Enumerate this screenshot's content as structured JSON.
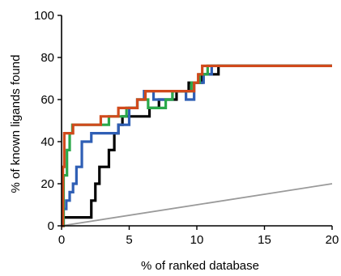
{
  "chart_data": {
    "type": "line",
    "title": "",
    "xlabel": "% of ranked database",
    "ylabel": "% of known ligands found",
    "xlim": [
      0,
      20
    ],
    "ylim": [
      0,
      100
    ],
    "xticks": [
      0,
      5,
      10,
      15,
      20
    ],
    "yticks": [
      0,
      20,
      40,
      60,
      80,
      100
    ],
    "grid": false,
    "legend": "none",
    "series": [
      {
        "color": "#9a9a9a",
        "x": [
          0,
          20
        ],
        "y": [
          0,
          20
        ]
      },
      {
        "color": "#000000",
        "x": [
          0,
          0.1,
          0.15,
          0.15,
          2.2,
          2.2,
          2.5,
          2.5,
          2.8,
          2.8,
          3.5,
          3.5,
          3.9,
          3.9,
          4.2,
          4.2,
          4.5,
          4.5,
          6.5,
          6.5,
          7.2,
          7.2,
          8.5,
          8.5,
          9.4,
          9.4,
          10.4,
          10.4,
          11.0,
          11.0,
          11.6,
          11.6,
          20
        ],
        "y": [
          0,
          0,
          4,
          4,
          4,
          12,
          12,
          20,
          20,
          28,
          28,
          36,
          36,
          44,
          44,
          48,
          48,
          52,
          52,
          56,
          56,
          60,
          60,
          64,
          64,
          68,
          68,
          72,
          72,
          72,
          72,
          76,
          76
        ]
      },
      {
        "color": "#2f5fb5",
        "x": [
          0,
          0.15,
          0.15,
          0.35,
          0.35,
          0.6,
          0.6,
          0.85,
          0.85,
          1.1,
          1.1,
          1.5,
          1.5,
          2.2,
          2.2,
          4.2,
          4.2,
          5.0,
          5.0,
          5.6,
          5.6,
          6.1,
          6.1,
          6.8,
          6.8,
          8.2,
          8.2,
          9.2,
          9.2,
          9.8,
          9.8,
          10.5,
          10.5,
          11.1,
          11.1,
          20
        ],
        "y": [
          0,
          0,
          8,
          8,
          12,
          12,
          16,
          16,
          20,
          20,
          28,
          28,
          40,
          40,
          44,
          44,
          48,
          48,
          56,
          56,
          60,
          60,
          64,
          64,
          60,
          60,
          64,
          64,
          60,
          60,
          68,
          68,
          72,
          72,
          76,
          76
        ]
      },
      {
        "color": "#2aa84a",
        "x": [
          0,
          0.15,
          0.15,
          0.4,
          0.4,
          0.6,
          0.6,
          0.8,
          0.8,
          3.5,
          3.5,
          4.8,
          4.8,
          5.6,
          5.6,
          6.4,
          6.4,
          7.7,
          7.7,
          8.2,
          8.2,
          9.6,
          9.6,
          10.2,
          10.2,
          10.8,
          10.8,
          20
        ],
        "y": [
          0,
          0,
          24,
          24,
          36,
          36,
          44,
          44,
          48,
          48,
          52,
          52,
          56,
          56,
          60,
          60,
          56,
          56,
          60,
          60,
          64,
          64,
          68,
          68,
          72,
          72,
          76,
          76
        ]
      },
      {
        "color": "#d04a1c",
        "x": [
          0,
          0.1,
          0.1,
          0.2,
          0.2,
          0.85,
          0.85,
          2.9,
          2.9,
          4.2,
          4.2,
          5.6,
          5.6,
          6.2,
          6.2,
          9.8,
          9.8,
          10.1,
          10.1,
          10.4,
          10.4,
          20
        ],
        "y": [
          0,
          0,
          28,
          28,
          44,
          44,
          48,
          48,
          52,
          52,
          56,
          56,
          60,
          60,
          64,
          64,
          68,
          68,
          72,
          72,
          76,
          76
        ]
      }
    ]
  }
}
